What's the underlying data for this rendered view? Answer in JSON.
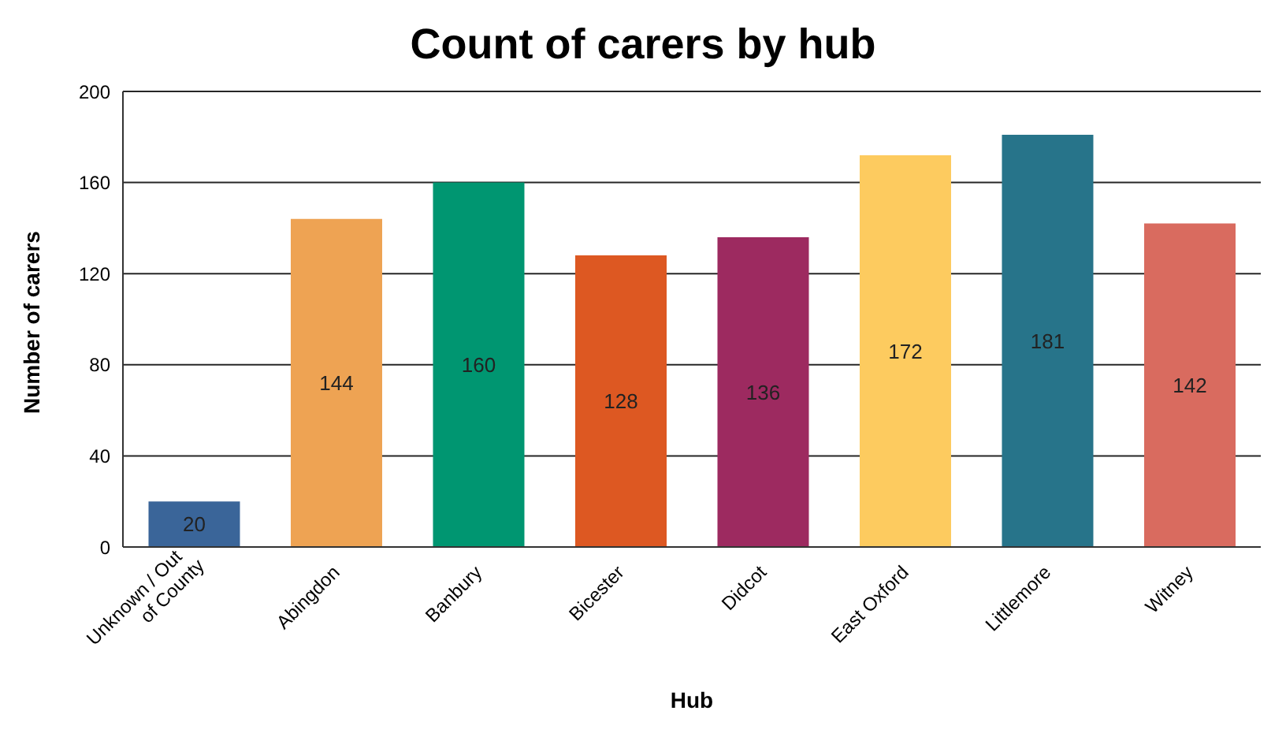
{
  "chart_data": {
    "type": "bar",
    "title": "Count of carers by hub",
    "xlabel": "Hub",
    "ylabel": "Number of carers",
    "categories": [
      "Unknown / Out of County",
      "Abingdon",
      "Banbury",
      "Bicester",
      "Didcot",
      "East Oxford",
      "Littlemore",
      "Witney"
    ],
    "values": [
      20,
      144,
      160,
      128,
      136,
      172,
      181,
      142
    ],
    "colors": [
      "#3a6599",
      "#eea353",
      "#009671",
      "#dd5822",
      "#9d2a60",
      "#fdcb5f",
      "#27748a",
      "#d96b5f"
    ],
    "ylim": [
      0,
      200
    ],
    "yticks": [
      0,
      40,
      80,
      120,
      160,
      200
    ],
    "grid": "y",
    "data_labels": true
  }
}
